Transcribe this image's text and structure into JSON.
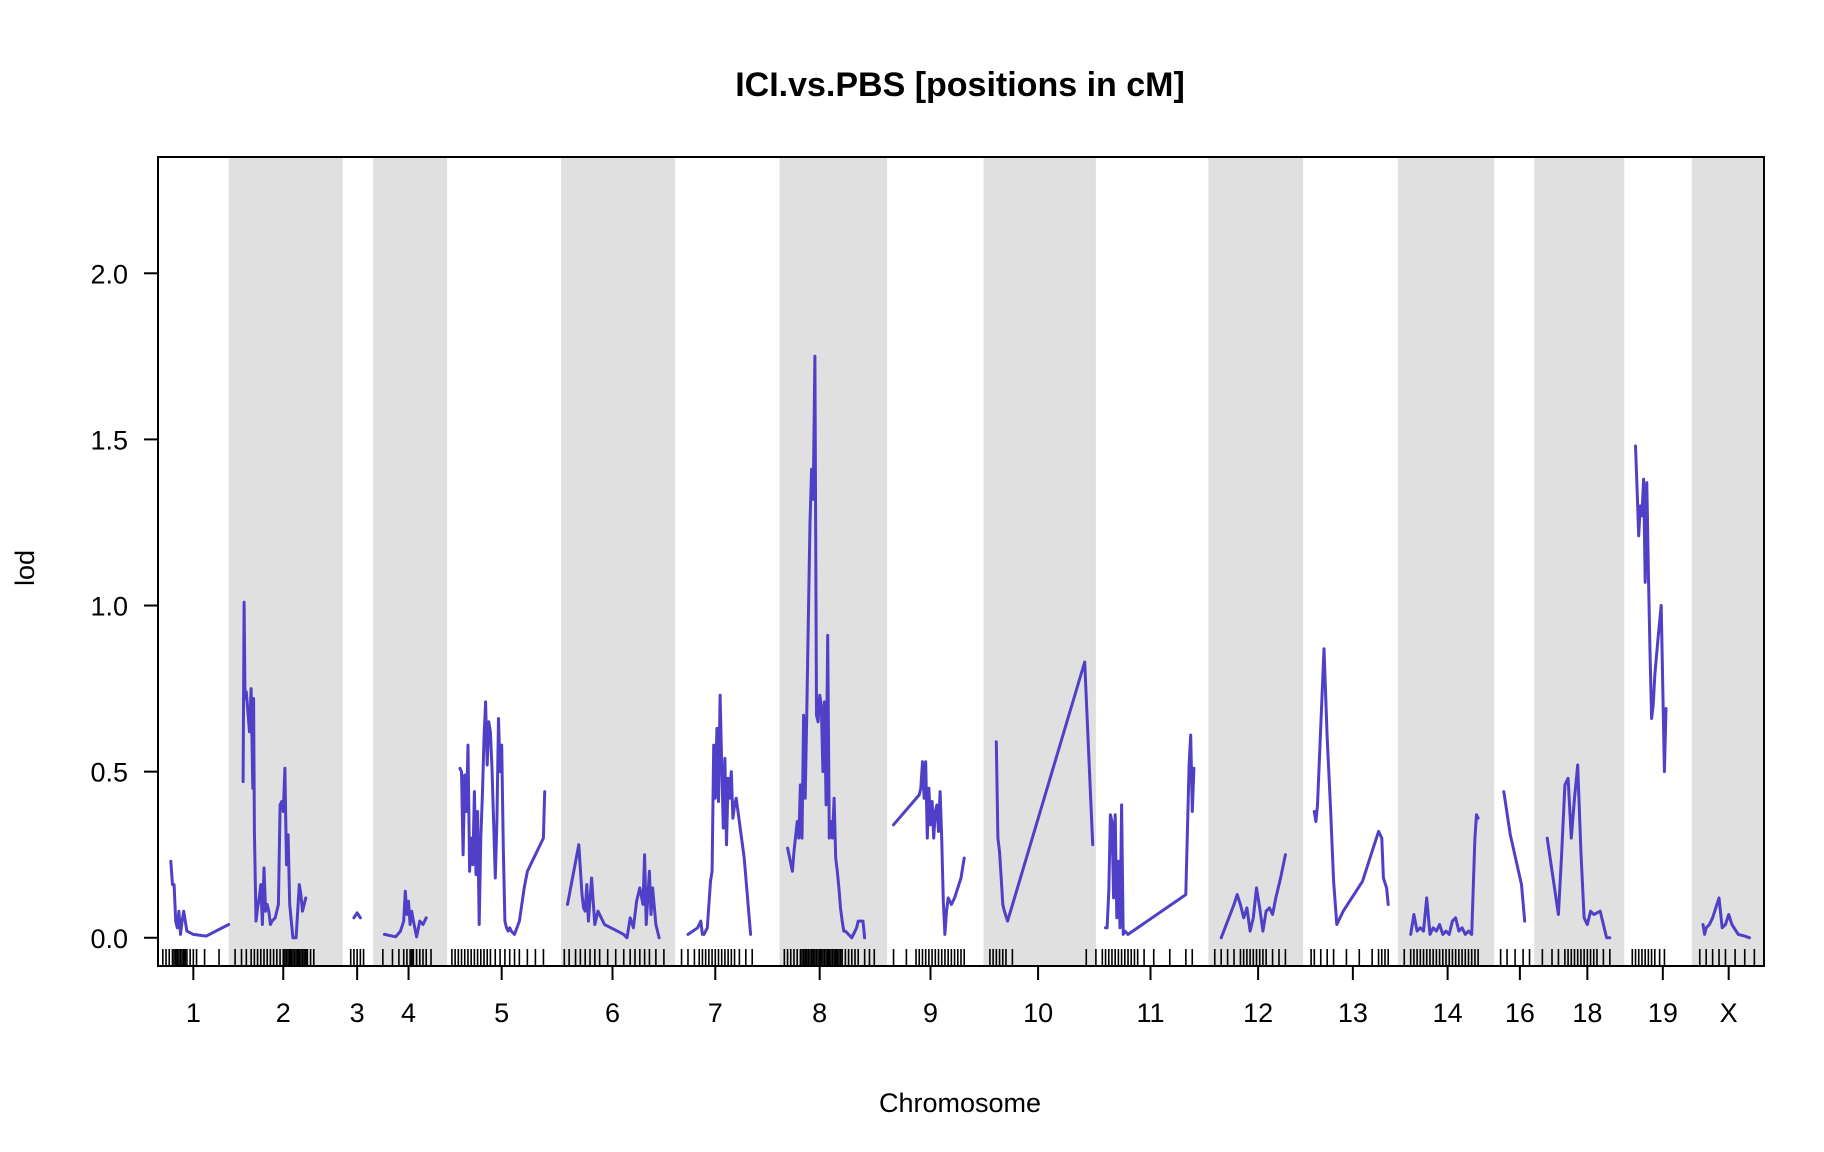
{
  "chart_data": {
    "type": "line",
    "title": "ICI.vs.PBS [positions in cM]",
    "xlabel": "Chromosome",
    "ylabel": "lod",
    "ylim": [
      -0.085,
      2.35
    ],
    "yticks": [
      "0.0",
      "0.5",
      "1.0",
      "1.5",
      "2.0"
    ],
    "ytick_values": [
      0.0,
      0.5,
      1.0,
      1.5,
      2.0
    ],
    "xlim": [
      0,
      1000
    ],
    "line_color": "#5040c8",
    "band_color": "#e0e0e0",
    "chromosomes": [
      {
        "name": "1",
        "start": 0,
        "end": 44,
        "label_pos": 22,
        "shaded": false,
        "x": [
          8,
          9,
          10,
          11,
          12,
          13,
          14,
          15,
          16,
          18,
          22,
          30,
          44
        ],
        "y": [
          0.23,
          0.16,
          0.16,
          0.05,
          0.03,
          0.08,
          0.01,
          0.05,
          0.08,
          0.02,
          0.01,
          0.005,
          0.04
        ],
        "markers": [
          3,
          5,
          7,
          9,
          10,
          11,
          12,
          13,
          14,
          15,
          16,
          17,
          18,
          20,
          22,
          24,
          29,
          38
        ]
      },
      {
        "name": "2",
        "start": 44,
        "end": 115,
        "label_pos": 78,
        "shaded": true,
        "x": [
          53,
          53.6,
          54.2,
          55,
          56,
          57,
          58,
          59,
          59.5,
          60,
          61,
          62,
          63,
          64,
          65,
          66,
          67,
          68,
          69,
          70,
          71,
          73,
          75,
          76,
          77,
          78,
          79,
          80,
          81,
          82,
          84,
          86,
          88,
          89,
          90,
          91,
          92
        ],
        "y": [
          0.47,
          1.01,
          0.72,
          0.74,
          0.68,
          0.62,
          0.75,
          0.45,
          0.72,
          0.32,
          0.05,
          0.09,
          0.12,
          0.16,
          0.04,
          0.21,
          0.08,
          0.1,
          0.08,
          0.04,
          0.05,
          0.06,
          0.1,
          0.4,
          0.41,
          0.38,
          0.51,
          0.22,
          0.31,
          0.1,
          0.0,
          0.0,
          0.16,
          0.13,
          0.08,
          0.1,
          0.12
        ],
        "markers": [
          48,
          52,
          55,
          58,
          60,
          62,
          64,
          66,
          68,
          70,
          72,
          74,
          76,
          78,
          79,
          80,
          81,
          82,
          83,
          84,
          85,
          86,
          87,
          88,
          89,
          90,
          91,
          92,
          93,
          95,
          97
        ]
      },
      {
        "name": "3",
        "start": 115,
        "end": 134,
        "label_pos": 124,
        "shaded": false,
        "x": [
          122,
          124,
          126
        ],
        "y": [
          0.06,
          0.075,
          0.06
        ],
        "markers": [
          120,
          122,
          124,
          126,
          128
        ]
      },
      {
        "name": "4",
        "start": 134,
        "end": 180,
        "label_pos": 156,
        "shaded": true,
        "x": [
          141,
          148,
          151,
          153,
          154,
          155,
          156,
          157,
          158,
          159,
          161,
          163,
          165,
          167
        ],
        "y": [
          0.01,
          0.003,
          0.02,
          0.05,
          0.14,
          0.07,
          0.11,
          0.04,
          0.08,
          0.05,
          0.003,
          0.05,
          0.04,
          0.06
        ],
        "markers": [
          140,
          146,
          150,
          153,
          155,
          157,
          158,
          159,
          161,
          163,
          165,
          167,
          170
        ]
      },
      {
        "name": "5",
        "start": 180,
        "end": 251,
        "label_pos": 214,
        "shaded": false,
        "x": [
          188,
          189,
          190,
          191,
          192,
          193,
          194,
          195,
          196,
          197,
          198,
          199,
          200,
          201,
          202,
          203,
          204,
          205,
          206,
          207,
          208,
          209,
          210,
          211,
          212,
          213,
          214,
          215,
          216,
          217,
          218,
          219,
          220,
          222,
          225,
          228,
          230,
          240,
          240.8
        ],
        "y": [
          0.51,
          0.5,
          0.25,
          0.49,
          0.38,
          0.58,
          0.2,
          0.3,
          0.22,
          0.44,
          0.19,
          0.38,
          0.04,
          0.3,
          0.43,
          0.6,
          0.71,
          0.52,
          0.65,
          0.62,
          0.51,
          0.34,
          0.18,
          0.35,
          0.66,
          0.5,
          0.58,
          0.27,
          0.05,
          0.03,
          0.02,
          0.03,
          0.02,
          0.01,
          0.05,
          0.15,
          0.2,
          0.3,
          0.44
        ],
        "markers": [
          183,
          185,
          187,
          189,
          191,
          193,
          195,
          197,
          199,
          201,
          203,
          205,
          207,
          210,
          213,
          216,
          219,
          222,
          225,
          230,
          235,
          240
        ]
      },
      {
        "name": "6",
        "start": 251,
        "end": 322,
        "label_pos": 283,
        "shaded": true,
        "x": [
          255,
          262,
          264,
          265,
          266,
          267,
          268,
          270,
          272,
          274,
          278,
          282,
          286,
          290,
          292,
          294,
          296,
          298,
          300,
          302,
          303,
          304,
          306,
          307,
          308,
          310,
          312
        ],
        "y": [
          0.1,
          0.28,
          0.13,
          0.09,
          0.08,
          0.16,
          0.05,
          0.18,
          0.04,
          0.08,
          0.04,
          0.03,
          0.02,
          0.01,
          0.0,
          0.06,
          0.03,
          0.11,
          0.15,
          0.1,
          0.25,
          0.04,
          0.2,
          0.07,
          0.15,
          0.04,
          0.0
        ],
        "markers": [
          253,
          256,
          260,
          263,
          266,
          269,
          272,
          275,
          280,
          285,
          290,
          294,
          297,
          300,
          303,
          306,
          310,
          315
        ]
      },
      {
        "name": "7",
        "start": 322,
        "end": 387,
        "label_pos": 347,
        "shaded": false,
        "x": [
          330,
          336,
          337,
          338,
          339,
          340,
          342,
          344,
          345,
          346,
          347,
          348,
          349,
          350,
          351,
          352,
          353,
          354,
          355,
          356,
          357,
          358,
          359,
          360,
          365,
          369
        ],
        "y": [
          0.01,
          0.03,
          0.04,
          0.05,
          0.01,
          0.01,
          0.03,
          0.17,
          0.2,
          0.58,
          0.42,
          0.63,
          0.41,
          0.73,
          0.52,
          0.33,
          0.54,
          0.28,
          0.48,
          0.42,
          0.5,
          0.36,
          0.4,
          0.42,
          0.24,
          0.01
        ],
        "markers": [
          326,
          330,
          334,
          337,
          339,
          341,
          343,
          345,
          347,
          349,
          351,
          353,
          355,
          357,
          359,
          362,
          366,
          370
        ]
      },
      {
        "name": "8",
        "start": 387,
        "end": 454,
        "label_pos": 412,
        "shaded": true,
        "x": [
          392,
          395,
          396,
          398,
          399,
          400,
          401,
          402,
          403,
          404,
          405,
          406,
          407,
          408,
          409,
          410,
          411,
          412,
          413,
          414,
          415,
          416,
          417,
          418,
          419,
          420,
          421,
          422,
          423,
          424,
          425,
          426,
          427,
          428,
          432,
          435,
          436,
          439,
          440
        ],
        "y": [
          0.27,
          0.2,
          0.26,
          0.35,
          0.3,
          0.46,
          0.3,
          0.67,
          0.42,
          0.68,
          0.97,
          1.25,
          1.41,
          1.32,
          1.75,
          0.67,
          0.65,
          0.73,
          0.7,
          0.5,
          0.71,
          0.4,
          0.91,
          0.3,
          0.35,
          0.3,
          0.42,
          0.24,
          0.2,
          0.15,
          0.09,
          0.05,
          0.02,
          0.02,
          0.0,
          0.03,
          0.05,
          0.05,
          0.0
        ],
        "markers": [
          390,
          392,
          394,
          396,
          398,
          400,
          401,
          402,
          403,
          404,
          405,
          406,
          407,
          408,
          409,
          410,
          411,
          412,
          413,
          414,
          415,
          416,
          417,
          418,
          419,
          420,
          421,
          422,
          423,
          424,
          425,
          426,
          428,
          430,
          432,
          434,
          436,
          440,
          443,
          446
        ]
      },
      {
        "name": "9",
        "start": 454,
        "end": 514,
        "label_pos": 481,
        "shaded": false,
        "x": [
          458,
          474,
          475,
          476,
          477,
          478,
          479,
          480,
          481,
          482,
          483,
          484,
          485,
          486,
          487,
          488,
          489,
          490,
          491,
          492,
          494,
          496,
          498,
          500,
          502
        ],
        "y": [
          0.34,
          0.43,
          0.45,
          0.53,
          0.42,
          0.53,
          0.3,
          0.45,
          0.34,
          0.41,
          0.3,
          0.38,
          0.4,
          0.32,
          0.44,
          0.3,
          0.11,
          0.01,
          0.08,
          0.12,
          0.1,
          0.12,
          0.15,
          0.18,
          0.24
        ],
        "markers": [
          458,
          466,
          472,
          474,
          476,
          478,
          480,
          482,
          484,
          486,
          488,
          490,
          492,
          494,
          496,
          498,
          500,
          502
        ]
      },
      {
        "name": "10",
        "start": 514,
        "end": 584,
        "label_pos": 548,
        "shaded": true,
        "x": [
          522,
          523,
          524,
          525,
          526,
          527,
          529,
          577,
          582
        ],
        "y": [
          0.59,
          0.3,
          0.26,
          0.18,
          0.1,
          0.08,
          0.05,
          0.83,
          0.28
        ],
        "markers": [
          518,
          520,
          522,
          524,
          526,
          528,
          532,
          578,
          584
        ]
      },
      {
        "name": "11",
        "start": 584,
        "end": 654,
        "label_pos": 618,
        "shaded": false,
        "x": [
          590,
          591,
          592,
          593,
          594,
          595,
          596,
          597,
          598,
          599,
          600,
          601,
          602,
          604,
          640,
          642,
          643,
          644,
          645
        ],
        "y": [
          0.03,
          0.03,
          0.14,
          0.37,
          0.35,
          0.12,
          0.37,
          0.06,
          0.23,
          0.03,
          0.4,
          0.01,
          0.02,
          0.01,
          0.13,
          0.52,
          0.61,
          0.38,
          0.51
        ],
        "markers": [
          588,
          590,
          592,
          594,
          596,
          598,
          600,
          602,
          604,
          606,
          608,
          610,
          614,
          620,
          630,
          640,
          644
        ]
      },
      {
        "name": "12",
        "start": 654,
        "end": 713,
        "label_pos": 685,
        "shaded": true,
        "x": [
          662,
          670,
          672,
          674,
          676,
          678,
          680,
          682,
          684,
          686,
          688,
          690,
          692,
          694,
          696,
          699,
          702
        ],
        "y": [
          0.0,
          0.1,
          0.13,
          0.1,
          0.06,
          0.09,
          0.02,
          0.06,
          0.15,
          0.09,
          0.02,
          0.08,
          0.09,
          0.07,
          0.12,
          0.18,
          0.25
        ],
        "markers": [
          658,
          662,
          666,
          670,
          674,
          676,
          678,
          680,
          682,
          684,
          686,
          688,
          690,
          694,
          698,
          702
        ]
      },
      {
        "name": "13",
        "start": 713,
        "end": 772,
        "label_pos": 744,
        "shaded": false,
        "x": [
          720,
          721,
          722,
          726,
          728,
          730,
          732,
          734,
          738,
          750,
          756,
          760,
          762,
          763,
          765,
          766
        ],
        "y": [
          0.38,
          0.35,
          0.4,
          0.87,
          0.6,
          0.4,
          0.17,
          0.04,
          0.08,
          0.17,
          0.26,
          0.32,
          0.3,
          0.18,
          0.15,
          0.1
        ],
        "markers": [
          718,
          720,
          724,
          728,
          732,
          740,
          748,
          756,
          760,
          762,
          764,
          766
        ]
      },
      {
        "name": "14",
        "start": 772,
        "end": 832,
        "label_pos": 803,
        "shaded": true,
        "x": [
          780,
          782,
          784,
          786,
          788,
          790,
          792,
          794,
          796,
          798,
          800,
          802,
          804,
          806,
          808,
          810,
          812,
          814,
          816,
          818,
          820,
          821,
          822
        ],
        "y": [
          0.01,
          0.07,
          0.02,
          0.03,
          0.02,
          0.12,
          0.01,
          0.03,
          0.02,
          0.04,
          0.01,
          0.02,
          0.01,
          0.05,
          0.06,
          0.02,
          0.03,
          0.01,
          0.02,
          0.01,
          0.3,
          0.37,
          0.36
        ],
        "markers": [
          776,
          780,
          782,
          784,
          786,
          788,
          790,
          792,
          794,
          796,
          798,
          800,
          802,
          804,
          806,
          808,
          810,
          812,
          814,
          816,
          818,
          820,
          822
        ]
      },
      {
        "name": "16",
        "start": 832,
        "end": 857,
        "label_pos": 848,
        "shaded": false,
        "x": [
          838,
          842,
          849,
          851
        ],
        "y": [
          0.44,
          0.31,
          0.16,
          0.05
        ],
        "markers": [
          836,
          840,
          845,
          850,
          854
        ]
      },
      {
        "name": "18",
        "start": 857,
        "end": 913,
        "label_pos": 890,
        "shaded": true,
        "x": [
          865,
          872,
          874,
          876,
          878,
          880,
          882,
          884,
          886,
          888,
          890,
          892,
          894,
          898,
          902,
          904
        ],
        "y": [
          0.3,
          0.07,
          0.25,
          0.46,
          0.48,
          0.3,
          0.42,
          0.52,
          0.26,
          0.06,
          0.04,
          0.08,
          0.07,
          0.08,
          0.0,
          0.0
        ],
        "markers": [
          862,
          868,
          872,
          876,
          878,
          880,
          882,
          884,
          886,
          888,
          890,
          892,
          894,
          896,
          900,
          904
        ]
      },
      {
        "name": "19",
        "start": 913,
        "end": 955,
        "label_pos": 937,
        "shaded": false,
        "x": [
          920,
          921,
          922,
          923,
          924,
          925,
          926,
          927,
          928,
          929,
          930,
          931,
          932,
          934,
          936,
          938,
          939
        ],
        "y": [
          1.48,
          1.35,
          1.21,
          1.3,
          1.27,
          1.38,
          1.07,
          1.37,
          1.1,
          0.86,
          0.66,
          0.7,
          0.79,
          0.9,
          1.0,
          0.5,
          0.69
        ],
        "markers": [
          918,
          920,
          922,
          924,
          926,
          928,
          930,
          932,
          935,
          938
        ]
      },
      {
        "name": "X",
        "start": 955,
        "end": 1000,
        "label_pos": 978,
        "shaded": true,
        "x": [
          962,
          963,
          964,
          966,
          968,
          970,
          972,
          974,
          976,
          978,
          980,
          984,
          988,
          991
        ],
        "y": [
          0.04,
          0.01,
          0.03,
          0.04,
          0.06,
          0.09,
          0.12,
          0.03,
          0.04,
          0.07,
          0.04,
          0.01,
          0.005,
          0.0
        ],
        "markers": [
          960,
          964,
          968,
          972,
          976,
          982,
          988,
          994
        ]
      }
    ]
  }
}
